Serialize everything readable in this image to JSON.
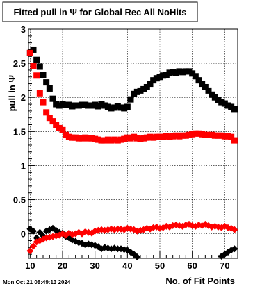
{
  "chart_data": {
    "type": "scatter",
    "title": "Fitted pull in  Ψ  for Global Rec All NoHits",
    "xlabel": "No. of Fit Points",
    "ylabel": "pull in  Ψ",
    "timestamp": "Mon Oct 21 08:49:13 2024",
    "xlim": [
      9.5,
      74
    ],
    "ylim": [
      -0.36,
      3.0
    ],
    "x_ticks": [
      10,
      20,
      30,
      40,
      50,
      60,
      70
    ],
    "y_ticks": [
      0,
      0.5,
      1,
      1.5,
      2,
      2.5,
      3
    ],
    "x_tick_labels": [
      "10",
      "20",
      "30",
      "40",
      "50",
      "60",
      "70"
    ],
    "y_tick_labels": [
      "0",
      "0.5",
      "1",
      "1.5",
      "2",
      "2.5",
      "3"
    ],
    "grid": true,
    "series": [
      {
        "marker": "square",
        "color": "#000000",
        "x": [
          10,
          11,
          12,
          13,
          14,
          15,
          16,
          17,
          18,
          19,
          20,
          21,
          22,
          23,
          24,
          25,
          26,
          27,
          28,
          29,
          30,
          31,
          32,
          33,
          34,
          35,
          36,
          37,
          38,
          39,
          40,
          41,
          42,
          43,
          44,
          45,
          46,
          47,
          48,
          49,
          50,
          51,
          52,
          53,
          54,
          55,
          56,
          57,
          58,
          59,
          60,
          61,
          62,
          63,
          64,
          65,
          66,
          67,
          68,
          69,
          70,
          71,
          72,
          73
        ],
        "y": [
          2.65,
          2.7,
          2.55,
          2.45,
          2.33,
          2.22,
          2.13,
          1.98,
          1.9,
          1.88,
          1.9,
          1.89,
          1.89,
          1.87,
          1.88,
          1.88,
          1.89,
          1.89,
          1.88,
          1.88,
          1.89,
          1.87,
          1.9,
          1.88,
          1.86,
          1.84,
          1.85,
          1.87,
          1.85,
          1.84,
          1.86,
          1.97,
          2.05,
          2.08,
          2.1,
          2.12,
          2.15,
          2.2,
          2.25,
          2.28,
          2.3,
          2.32,
          2.33,
          2.36,
          2.37,
          2.36,
          2.38,
          2.37,
          2.38,
          2.38,
          2.35,
          2.31,
          2.25,
          2.2,
          2.15,
          2.1,
          2.04,
          2.0,
          1.96,
          1.93,
          1.91,
          1.88,
          1.86,
          1.83
        ]
      },
      {
        "marker": "square",
        "color": "#ff0000",
        "x": [
          10,
          11,
          12,
          13,
          14,
          15,
          16,
          17,
          18,
          19,
          20,
          21,
          22,
          23,
          24,
          25,
          26,
          27,
          28,
          29,
          30,
          31,
          32,
          33,
          34,
          35,
          36,
          37,
          38,
          39,
          40,
          41,
          42,
          43,
          44,
          45,
          46,
          47,
          48,
          49,
          50,
          51,
          52,
          53,
          54,
          55,
          56,
          57,
          58,
          59,
          60,
          61,
          62,
          63,
          64,
          65,
          66,
          67,
          68,
          69,
          70,
          71,
          72,
          73
        ],
        "y": [
          2.65,
          2.46,
          2.32,
          2.06,
          1.93,
          1.78,
          1.7,
          1.65,
          1.6,
          1.55,
          1.52,
          1.45,
          1.42,
          1.41,
          1.41,
          1.4,
          1.4,
          1.41,
          1.4,
          1.4,
          1.39,
          1.38,
          1.37,
          1.37,
          1.38,
          1.37,
          1.38,
          1.37,
          1.38,
          1.39,
          1.41,
          1.4,
          1.42,
          1.4,
          1.39,
          1.4,
          1.41,
          1.42,
          1.41,
          1.42,
          1.42,
          1.42,
          1.43,
          1.42,
          1.43,
          1.44,
          1.43,
          1.44,
          1.44,
          1.45,
          1.46,
          1.47,
          1.47,
          1.46,
          1.45,
          1.45,
          1.45,
          1.44,
          1.44,
          1.44,
          1.43,
          1.43,
          1.42,
          1.37
        ]
      },
      {
        "marker": "diamond",
        "color": "#000000",
        "x": [
          10,
          11,
          12,
          13,
          14,
          15,
          16,
          17,
          18,
          19,
          20,
          21,
          22,
          23,
          24,
          25,
          26,
          27,
          28,
          29,
          30,
          31,
          32,
          33,
          34,
          35,
          36,
          37,
          38,
          39,
          40,
          41,
          42,
          43,
          69,
          70,
          71,
          72,
          73
        ],
        "y": [
          0.07,
          0.04,
          -0.06,
          0.02,
          -0.03,
          0.04,
          0.06,
          0.08,
          0.05,
          0.02,
          0.01,
          -0.04,
          -0.06,
          -0.09,
          -0.11,
          -0.13,
          -0.14,
          -0.16,
          -0.15,
          -0.16,
          -0.17,
          -0.19,
          -0.22,
          -0.2,
          -0.21,
          -0.22,
          -0.21,
          -0.22,
          -0.22,
          -0.23,
          -0.24,
          -0.27,
          -0.3,
          -0.34,
          -0.33,
          -0.3,
          -0.27,
          -0.24,
          -0.22
        ]
      },
      {
        "marker": "diamond",
        "color": "#ff0000",
        "x": [
          10,
          11,
          12,
          13,
          14,
          15,
          16,
          17,
          18,
          19,
          20,
          21,
          22,
          23,
          24,
          25,
          26,
          27,
          28,
          29,
          30,
          31,
          32,
          33,
          34,
          35,
          36,
          37,
          38,
          39,
          40,
          41,
          42,
          43,
          44,
          45,
          46,
          47,
          48,
          49,
          50,
          51,
          52,
          53,
          54,
          55,
          56,
          57,
          58,
          59,
          60,
          61,
          62,
          63,
          64,
          65,
          66,
          67,
          68,
          69,
          70,
          71,
          72,
          73
        ],
        "y": [
          -0.25,
          -0.18,
          -0.12,
          -0.1,
          -0.08,
          -0.06,
          -0.05,
          -0.04,
          -0.03,
          -0.02,
          0.0,
          -0.02,
          0.01,
          -0.01,
          0.0,
          0.02,
          0.0,
          0.03,
          0.02,
          0.01,
          0.04,
          0.05,
          0.06,
          0.05,
          0.06,
          0.07,
          0.06,
          0.07,
          0.07,
          0.06,
          0.08,
          0.07,
          0.06,
          0.04,
          0.05,
          0.06,
          0.08,
          0.07,
          0.09,
          0.1,
          0.08,
          0.09,
          0.11,
          0.1,
          0.12,
          0.13,
          0.12,
          0.11,
          0.13,
          0.14,
          0.12,
          0.11,
          0.13,
          0.12,
          0.14,
          0.12,
          0.1,
          0.11,
          0.1,
          0.09,
          0.11,
          0.09,
          0.08,
          0.06
        ]
      }
    ]
  }
}
